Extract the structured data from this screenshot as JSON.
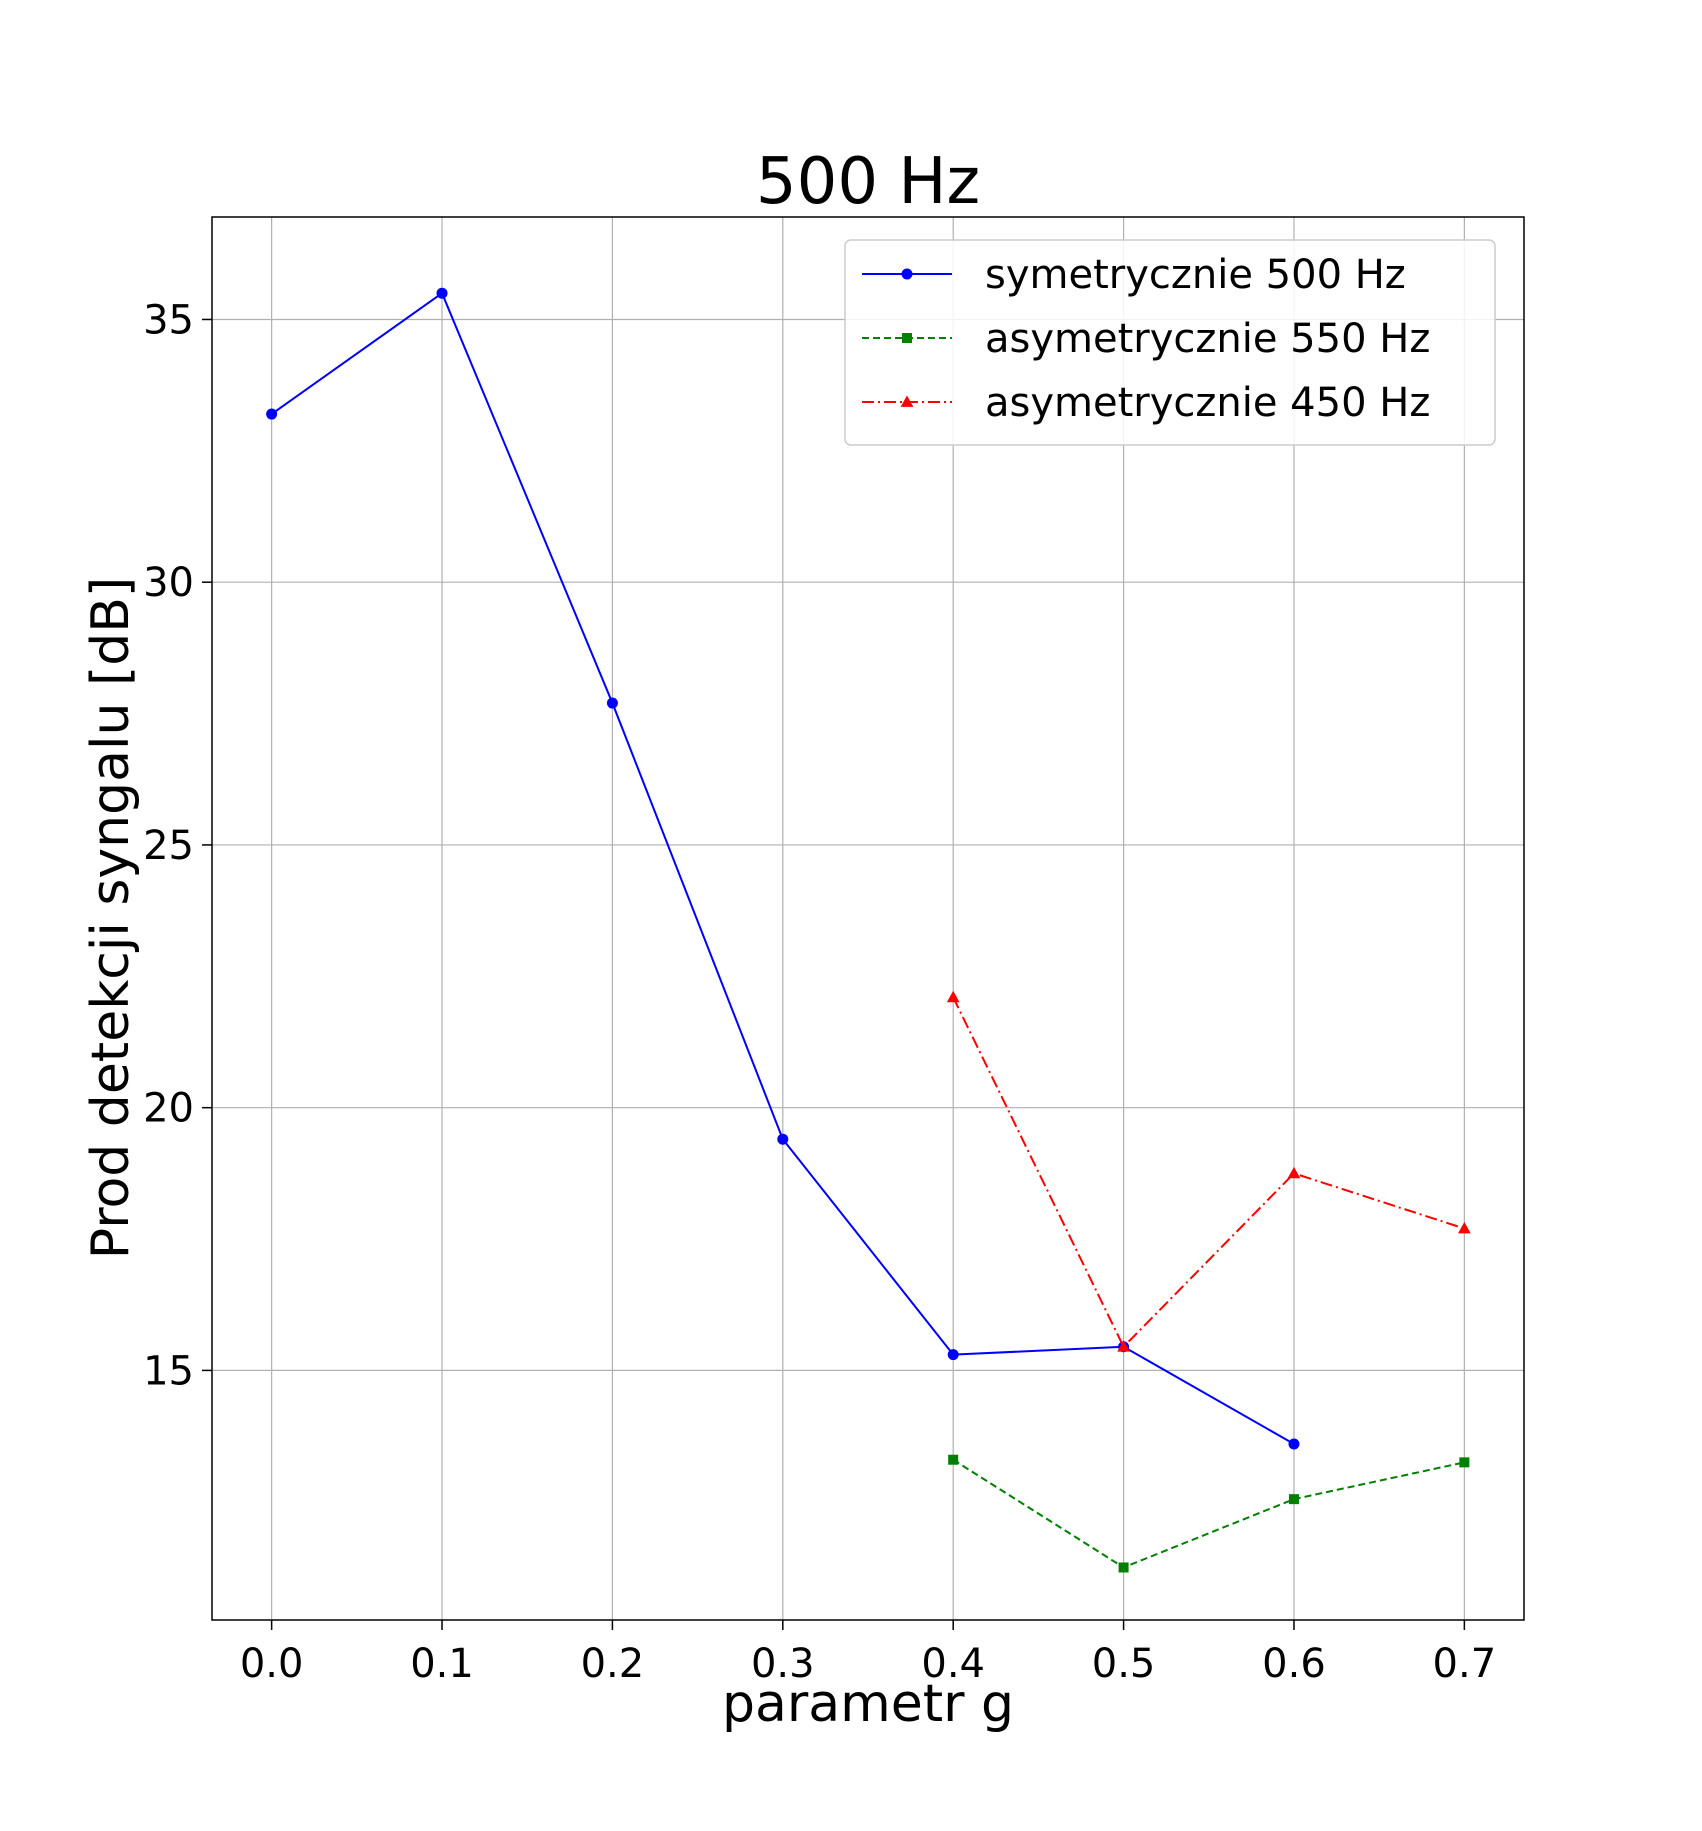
{
  "chart_data": {
    "type": "line",
    "title": "500 Hz",
    "xlabel": "parametr g",
    "ylabel": "Prod detekcji syngalu [dB]",
    "xlim": [
      -0.035,
      0.735
    ],
    "ylim": [
      10.25,
      36.95
    ],
    "xticks": [
      0.0,
      0.1,
      0.2,
      0.3,
      0.4,
      0.5,
      0.6,
      0.7
    ],
    "xtick_labels": [
      "0.0",
      "0.1",
      "0.2",
      "0.3",
      "0.4",
      "0.5",
      "0.6",
      "0.7"
    ],
    "yticks": [
      15,
      20,
      25,
      30,
      35
    ],
    "ytick_labels": [
      "15",
      "20",
      "25",
      "30",
      "35"
    ],
    "grid": true,
    "legend_position": "upper right",
    "series": [
      {
        "name": "symetrycznie 500 Hz",
        "color": "#0000ff",
        "marker": "circle",
        "linestyle": "solid",
        "x": [
          0.0,
          0.1,
          0.2,
          0.3,
          0.4,
          0.5,
          0.6
        ],
        "y": [
          33.2,
          35.5,
          27.7,
          19.4,
          15.3,
          15.45,
          13.6
        ]
      },
      {
        "name": "asymetrycznie 550 Hz",
        "color": "#008000",
        "marker": "square",
        "linestyle": "dashed",
        "x": [
          0.4,
          0.5,
          0.6,
          0.7
        ],
        "y": [
          13.3,
          11.25,
          12.55,
          13.25
        ]
      },
      {
        "name": "asymetrycznie 450 Hz",
        "color": "#ff0000",
        "marker": "triangle",
        "linestyle": "dashdot",
        "x": [
          0.4,
          0.5,
          0.6,
          0.7
        ],
        "y": [
          22.1,
          15.45,
          18.75,
          17.7
        ]
      }
    ]
  }
}
